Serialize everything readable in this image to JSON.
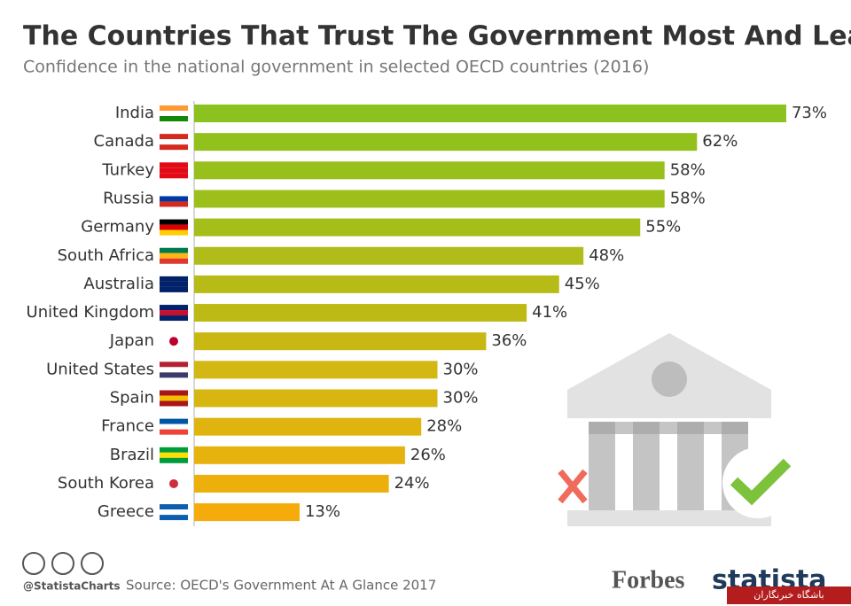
{
  "chart_data": {
    "type": "hbar",
    "title": "The Countries That Trust The Government Most And Least",
    "subtitle": "Confidence in the national government in selected OECD countries (2016)",
    "categories": [
      "India",
      "Canada",
      "Turkey",
      "Russia",
      "Germany",
      "South Africa",
      "Australia",
      "United Kingdom",
      "Japan",
      "United States",
      "Spain",
      "France",
      "Brazil",
      "South Korea",
      "Greece"
    ],
    "values": [
      73,
      62,
      58,
      58,
      55,
      48,
      45,
      41,
      36,
      30,
      30,
      28,
      26,
      24,
      13
    ],
    "value_labels": [
      "73%",
      "62%",
      "58%",
      "58%",
      "55%",
      "48%",
      "45%",
      "41%",
      "36%",
      "30%",
      "30%",
      "28%",
      "26%",
      "24%",
      "13%"
    ],
    "colors": [
      "#8cc220",
      "#92c11e",
      "#98c01d",
      "#9dbf1c",
      "#a5be1a",
      "#afbc19",
      "#b6bb17",
      "#bdba16",
      "#c9b814",
      "#d3b713",
      "#d7b612",
      "#dfb40f",
      "#e6b20e",
      "#ecaf0c",
      "#f5ac0a"
    ],
    "credit": "@StatistaCharts",
    "source": "Source: OECD's Government At A Glance 2017",
    "publisher": "Forbes",
    "brand": "statista",
    "watermark": "باشگاه خبرنگاران"
  }
}
